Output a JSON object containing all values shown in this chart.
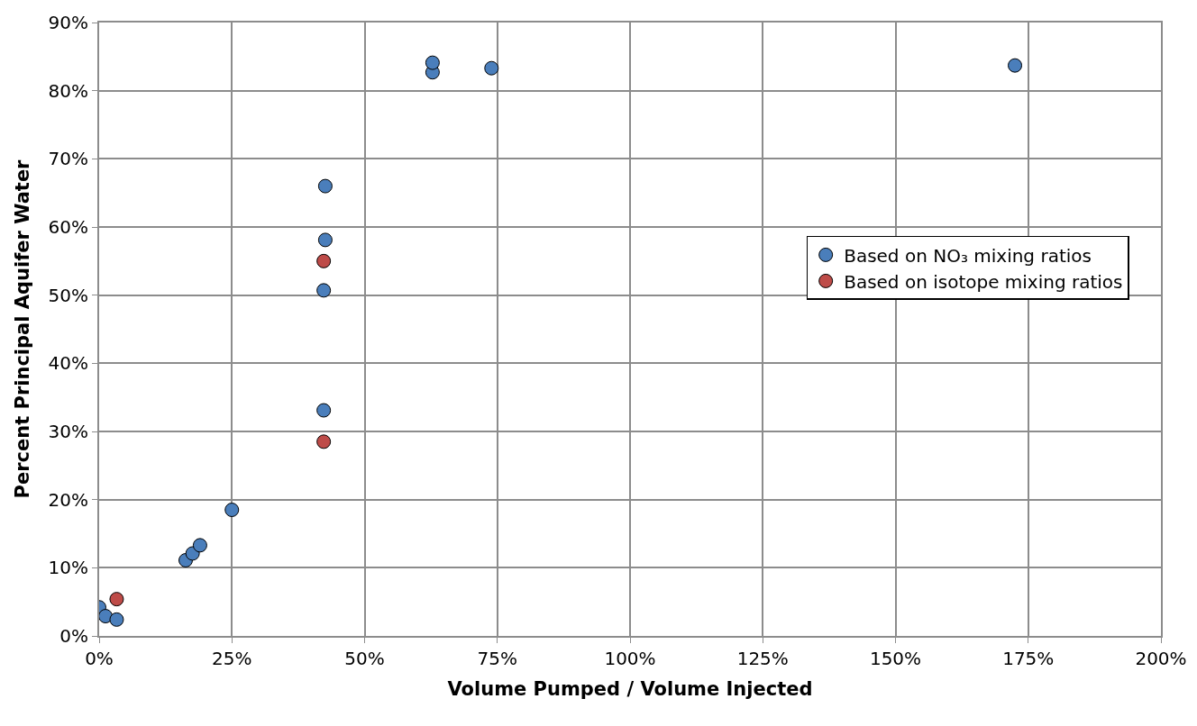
{
  "chart_data": {
    "type": "scatter",
    "xlabel": "Volume Pumped / Volume Injected",
    "ylabel": "Percent Principal Aquifer Water",
    "series": [
      {
        "name": "Based on NO₃ mixing ratios",
        "color": "#4a7ebb",
        "x": [
          0,
          1.2,
          3.3,
          16.3,
          17.6,
          19.0,
          25.0,
          42.3,
          42.3,
          42.6,
          42.6,
          62.8,
          62.8,
          73.9,
          172.5
        ],
        "values": [
          4.2,
          2.9,
          2.4,
          11.1,
          12.1,
          13.3,
          18.5,
          33.1,
          50.7,
          58.1,
          66.0,
          82.7,
          84.1,
          83.3,
          83.7
        ]
      },
      {
        "name": "Based on isotope mixing ratios",
        "color": "#be4b48",
        "x": [
          3.3,
          42.3,
          42.3
        ],
        "values": [
          5.4,
          55.0,
          28.5
        ]
      }
    ],
    "xlim": [
      0,
      200
    ],
    "xticks": [
      {
        "value": 0,
        "label": "0%"
      },
      {
        "value": 25,
        "label": "25%"
      },
      {
        "value": 50,
        "label": "50%"
      },
      {
        "value": 75,
        "label": "75%"
      },
      {
        "value": 100,
        "label": "100%"
      },
      {
        "value": 125,
        "label": "125%"
      },
      {
        "value": 150,
        "label": "150%"
      },
      {
        "value": 175,
        "label": "175%"
      },
      {
        "value": 200,
        "label": "200%"
      }
    ],
    "ylim": [
      0,
      90
    ],
    "yticks": [
      {
        "value": 0,
        "label": "0%"
      },
      {
        "value": 10,
        "label": "10%"
      },
      {
        "value": 20,
        "label": "20%"
      },
      {
        "value": 30,
        "label": "30%"
      },
      {
        "value": 40,
        "label": "40%"
      },
      {
        "value": 50,
        "label": "50%"
      },
      {
        "value": 60,
        "label": "60%"
      },
      {
        "value": 70,
        "label": "70%"
      },
      {
        "value": 80,
        "label": "80%"
      },
      {
        "value": 90,
        "label": "90%"
      }
    ],
    "grid": true,
    "legend": "right",
    "marker": "circle"
  }
}
